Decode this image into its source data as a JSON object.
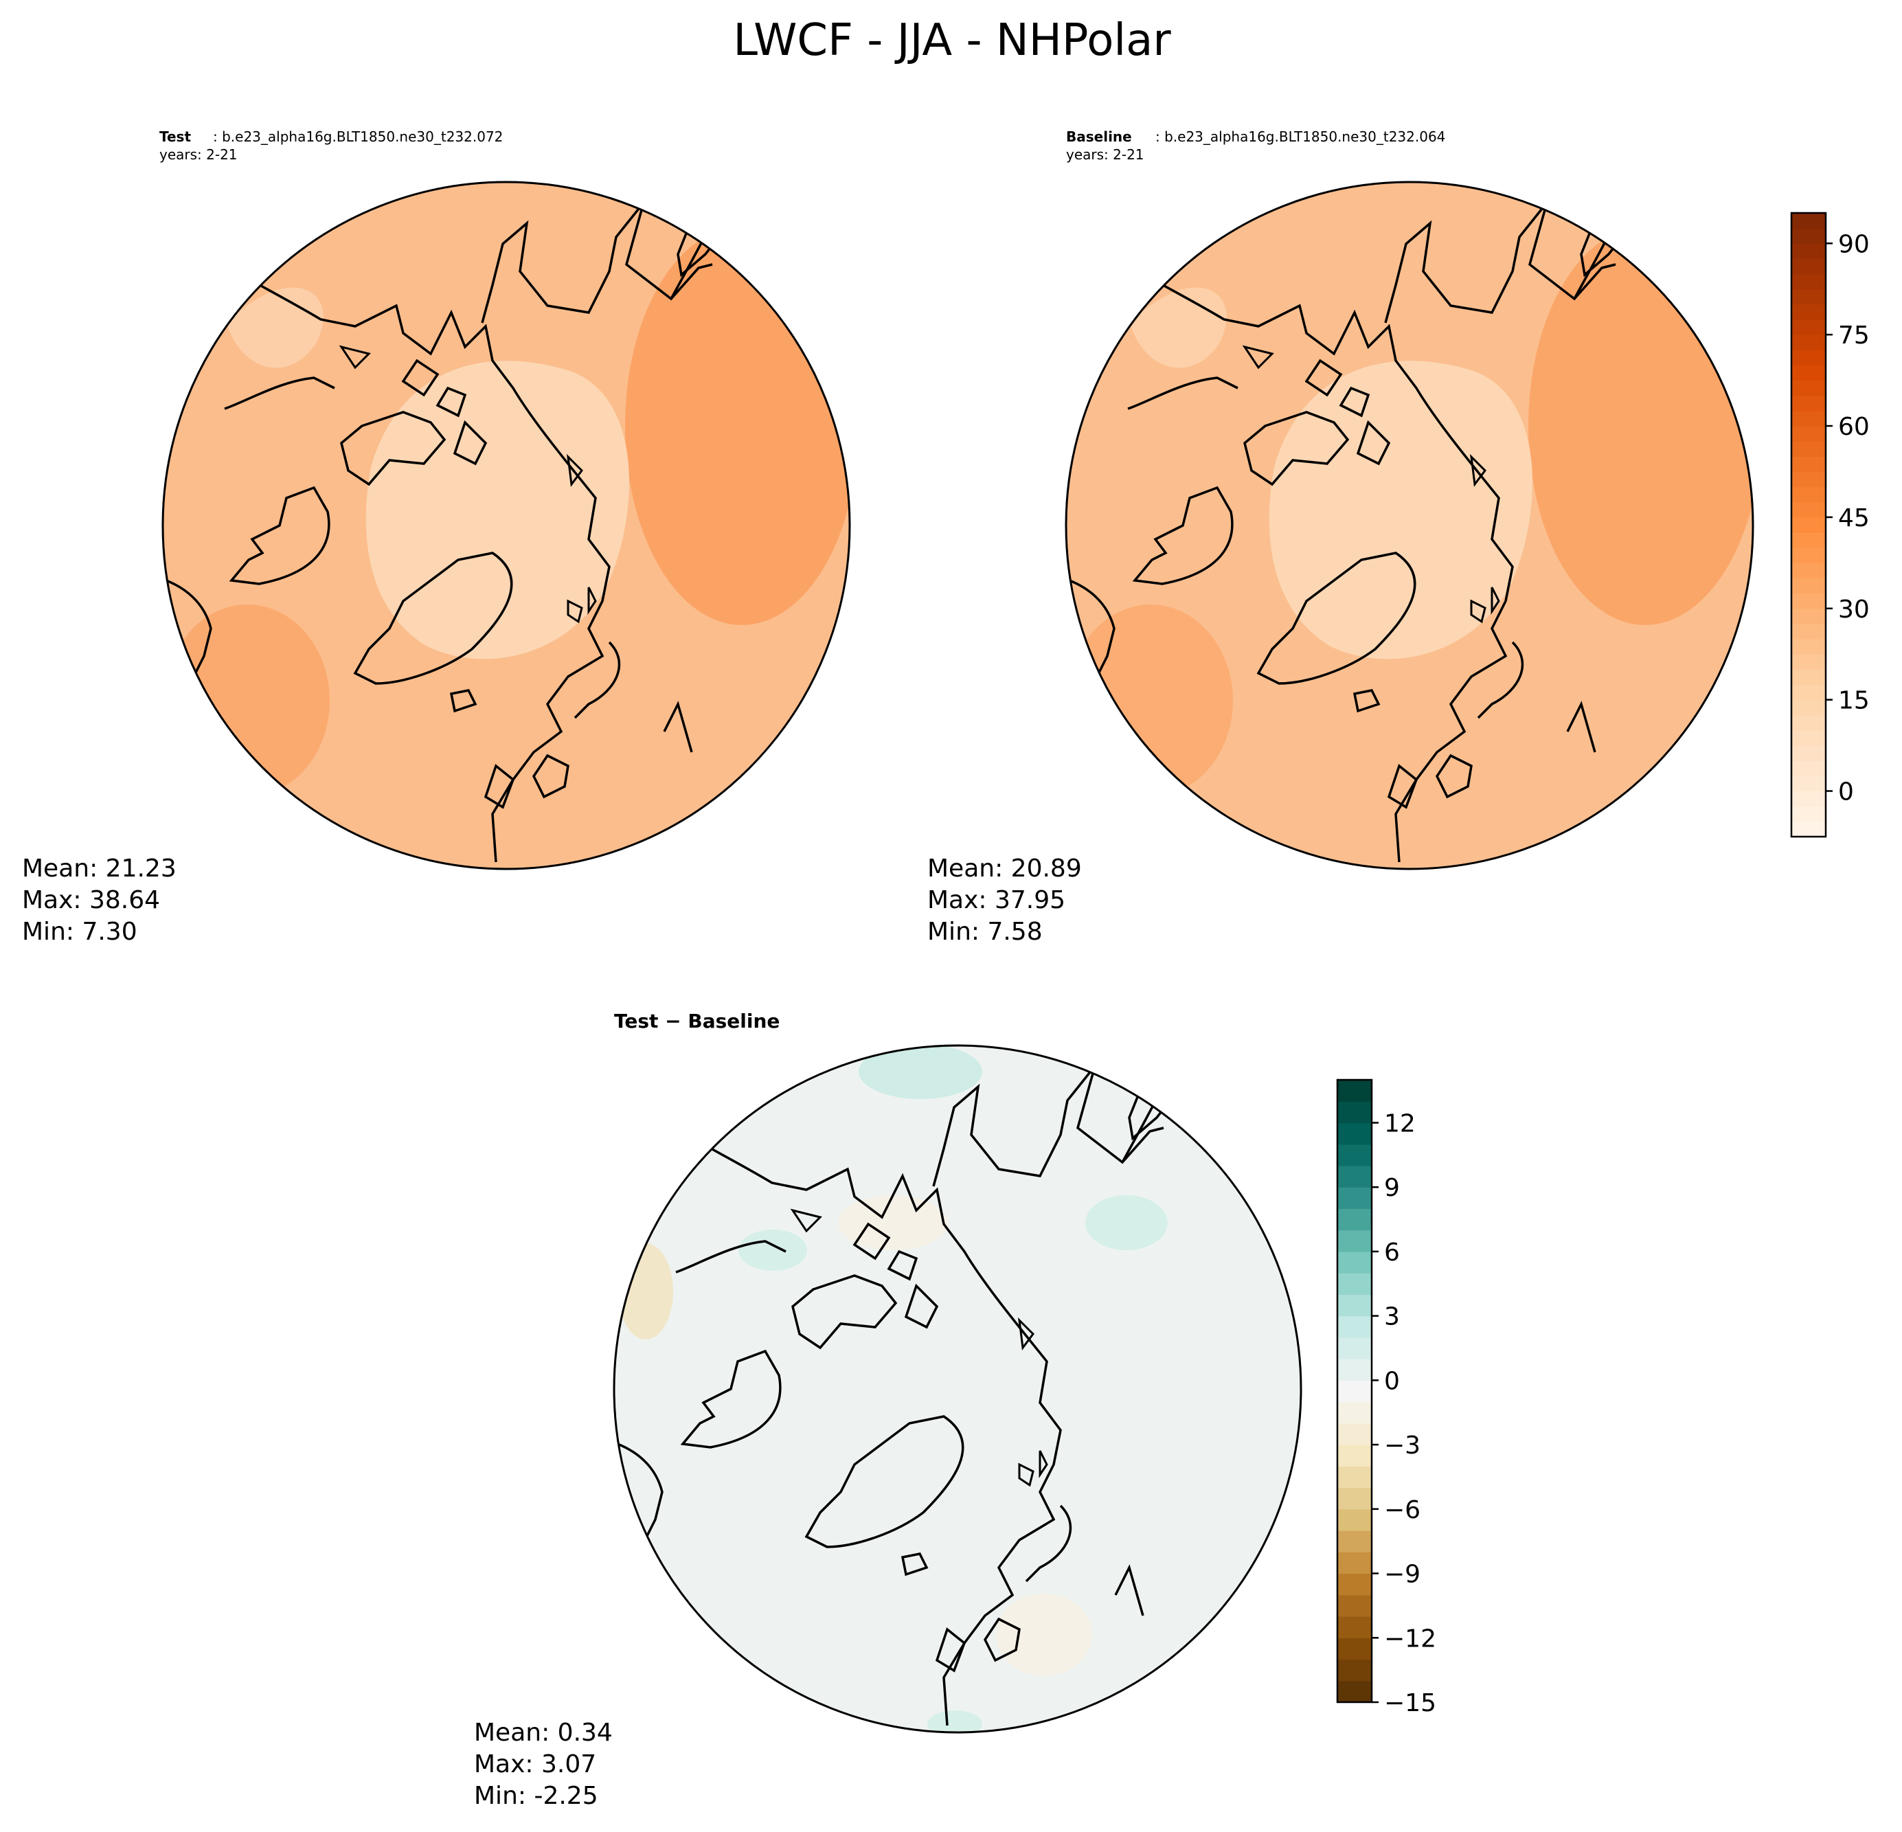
{
  "title": "LWCF - JJA - NHPolar",
  "test_panel": {
    "label_bold": "Test",
    "case": ": b.e23_alpha16g.BLT1850.ne30_t232.072",
    "years": "years: 2-21",
    "stats": [
      "Mean: 21.23",
      "Max: 38.64",
      "Min:  7.30"
    ]
  },
  "baseline_panel": {
    "label_bold": "Baseline",
    "case": ": b.e23_alpha16g.BLT1850.ne30_t232.064",
    "years": "years: 2-21",
    "stats": [
      "Mean: 20.89",
      "Max: 37.95",
      "Min:  7.58"
    ]
  },
  "diff_panel": {
    "title": "Test − Baseline",
    "stats": [
      "Mean:  0.34",
      "Max:  3.07",
      "Min: -2.25"
    ]
  },
  "colorbar_main": {
    "vmin": -7.5,
    "vmax": 95,
    "ticks": [
      0,
      15,
      30,
      45,
      60,
      75,
      90
    ],
    "tick_labels": [
      "0",
      "15",
      "30",
      "45",
      "60",
      "75",
      "90"
    ],
    "colors": [
      "#fff5eb",
      "#fdd0a2",
      "#fd8d3c",
      "#d94801",
      "#7f2704"
    ]
  },
  "colorbar_diff": {
    "vmin": -15,
    "vmax": 14,
    "ticks": [
      -15,
      -12,
      -9,
      -6,
      -3,
      0,
      3,
      6,
      9,
      12
    ],
    "tick_labels": [
      "−15",
      "−12",
      "−9",
      "−6",
      "−3",
      "0",
      "3",
      "6",
      "9",
      "12"
    ],
    "colors": [
      "#543005",
      "#8c510a",
      "#bf812d",
      "#dfc27d",
      "#f6e8c3",
      "#f5f5f5",
      "#c7eae5",
      "#80cdc1",
      "#35978f",
      "#01665e",
      "#003c30"
    ]
  },
  "colors": {
    "test_fill": "#fbbd8c",
    "baseline_fill": "#fbbf8f",
    "polar_fill": "#fdd7b4",
    "warm_fill": "#fb9b58",
    "diff_fill": "#eef3f1",
    "coast": "#000000"
  }
}
